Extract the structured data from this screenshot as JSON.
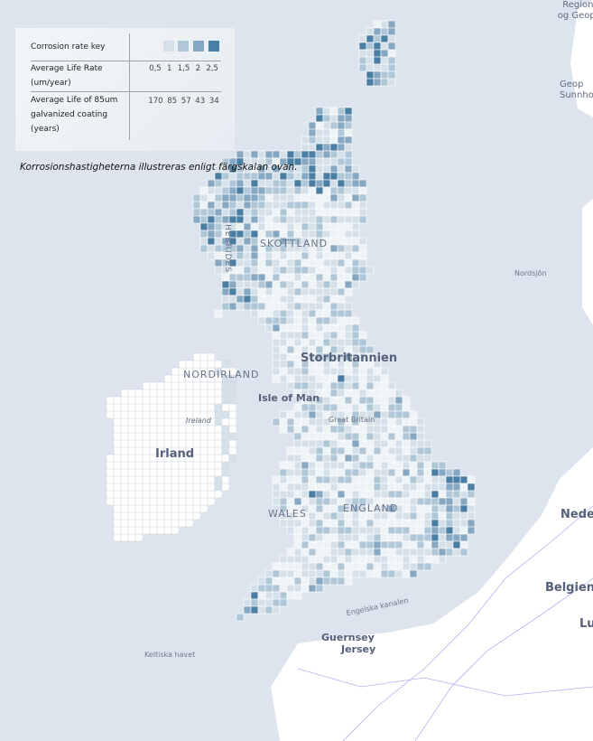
{
  "legend": {
    "title": "Corrosion rate key",
    "rate_label": "Average Life Rate (um/year)",
    "life_label": "Average Life of 85um galvanized coating (years)",
    "colors": [
      "#eef3f5",
      "#d5e0e8",
      "#b0c7d7",
      "#87a8c3",
      "#4a7ea3"
    ],
    "rates": [
      "0,5",
      "1",
      "1,5",
      "2",
      "2,5"
    ],
    "lives": [
      "170",
      "85",
      "57",
      "43",
      "34"
    ]
  },
  "note": "Korrosionshastigheterna illustreras enligt färgskalan ovan.",
  "map_labels": {
    "regional": "Regional- og Geopar",
    "geop": "Geop Sunnho",
    "skottland": "SKOTTLAND",
    "hebrides": "HEBRIDES",
    "nordsjon": "Nordsjön",
    "nordirland": "NORDIRLAND",
    "storbritannien": "Storbritannien",
    "isle_of_man": "Isle of Man",
    "ireland": "Ireland",
    "great_britain": "Great Britain",
    "irland": "Irland",
    "wales": "WALES",
    "england": "ENGLAND",
    "nederland": "Neder",
    "belgien": "Belgien",
    "lu": "Lu",
    "engelska_kanalen": "Engelska kanalen",
    "keltiska_havet": "Keltiska havet",
    "guernsey": "Guernsey",
    "jersey": "Jersey"
  },
  "colors": {
    "sea": "#dde4ee",
    "land": "#ffffff",
    "roads": "#a9a6f0"
  }
}
